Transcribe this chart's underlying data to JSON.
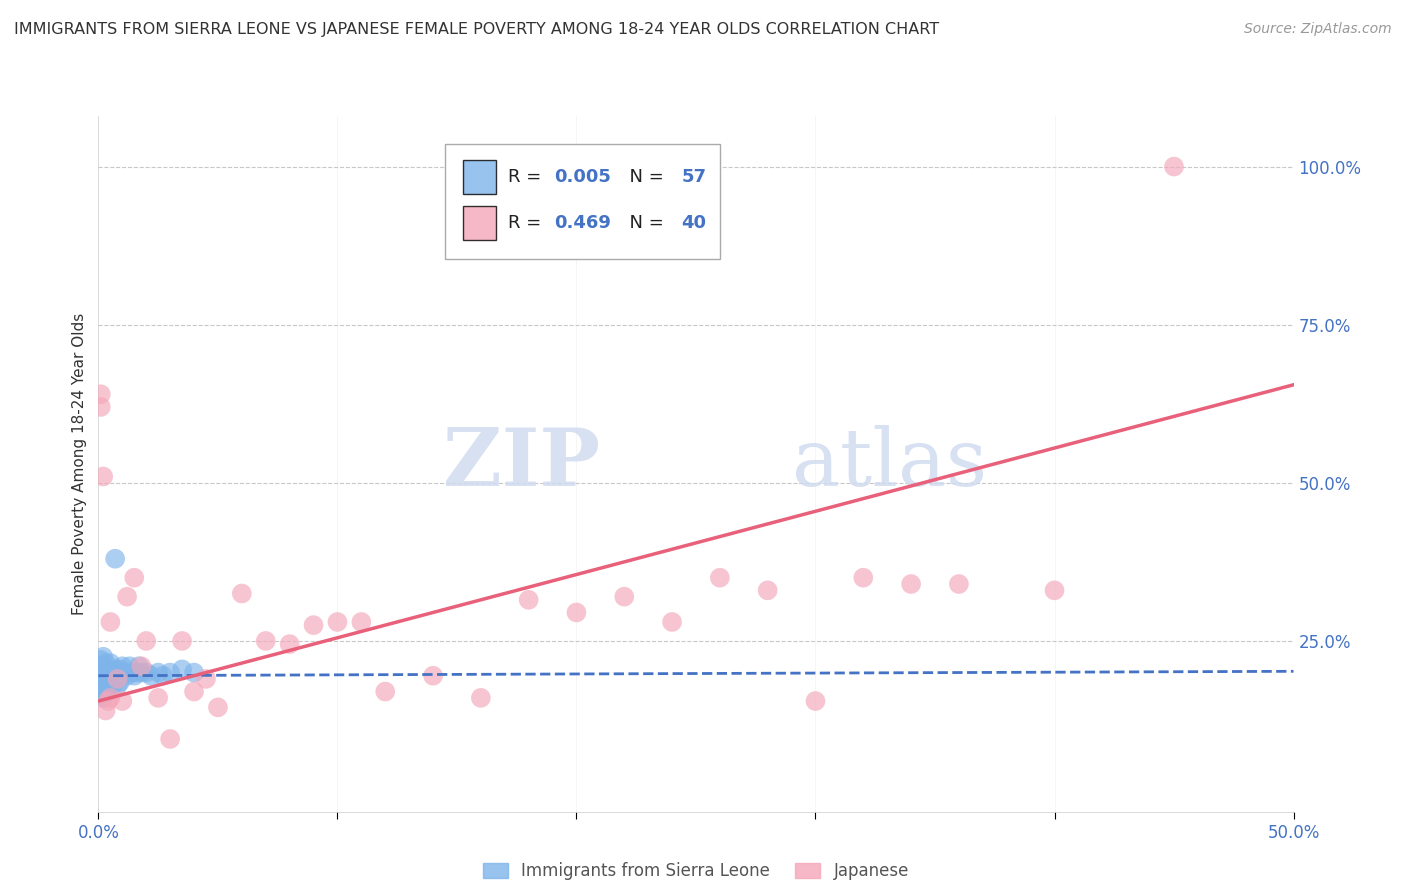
{
  "title": "IMMIGRANTS FROM SIERRA LEONE VS JAPANESE FEMALE POVERTY AMONG 18-24 YEAR OLDS CORRELATION CHART",
  "source": "Source: ZipAtlas.com",
  "ylabel": "Female Poverty Among 18-24 Year Olds",
  "xlim": [
    0.0,
    0.5
  ],
  "ylim": [
    -0.02,
    1.08
  ],
  "xticks": [
    0.0,
    0.1,
    0.2,
    0.3,
    0.4,
    0.5
  ],
  "xticklabels": [
    "0.0%",
    "",
    "",
    "",
    "",
    "50.0%"
  ],
  "yticks": [
    0.0,
    0.25,
    0.5,
    0.75,
    1.0
  ],
  "yticklabels_right": [
    "",
    "25.0%",
    "50.0%",
    "75.0%",
    "100.0%"
  ],
  "legend_r1": "0.005",
  "legend_n1": "57",
  "legend_r2": "0.469",
  "legend_n2": "40",
  "blue_color": "#7EB4EA",
  "pink_color": "#F4A7B9",
  "blue_line_color": "#4472C4",
  "pink_line_color": "#E8607A",
  "grid_color": "#C8C8C8",
  "watermark_zip": "ZIP",
  "watermark_atlas": "atlas",
  "blue_scatter_x": [
    0.0,
    0.0,
    0.0,
    0.001,
    0.001,
    0.001,
    0.001,
    0.001,
    0.001,
    0.002,
    0.002,
    0.002,
    0.002,
    0.002,
    0.002,
    0.002,
    0.003,
    0.003,
    0.003,
    0.003,
    0.003,
    0.004,
    0.004,
    0.004,
    0.004,
    0.005,
    0.005,
    0.005,
    0.006,
    0.006,
    0.006,
    0.007,
    0.007,
    0.007,
    0.008,
    0.008,
    0.008,
    0.009,
    0.009,
    0.009,
    0.01,
    0.01,
    0.011,
    0.012,
    0.013,
    0.014,
    0.015,
    0.016,
    0.017,
    0.018,
    0.02,
    0.022,
    0.025,
    0.027,
    0.03,
    0.035,
    0.04
  ],
  "blue_scatter_y": [
    0.195,
    0.185,
    0.175,
    0.21,
    0.195,
    0.18,
    0.165,
    0.175,
    0.22,
    0.2,
    0.19,
    0.185,
    0.18,
    0.17,
    0.16,
    0.225,
    0.205,
    0.195,
    0.185,
    0.175,
    0.215,
    0.2,
    0.19,
    0.18,
    0.17,
    0.195,
    0.185,
    0.215,
    0.2,
    0.19,
    0.18,
    0.205,
    0.38,
    0.195,
    0.2,
    0.19,
    0.18,
    0.205,
    0.195,
    0.185,
    0.21,
    0.2,
    0.2,
    0.195,
    0.21,
    0.2,
    0.195,
    0.2,
    0.21,
    0.2,
    0.2,
    0.195,
    0.2,
    0.195,
    0.2,
    0.205,
    0.2
  ],
  "pink_scatter_x": [
    0.001,
    0.001,
    0.002,
    0.003,
    0.004,
    0.005,
    0.005,
    0.008,
    0.01,
    0.012,
    0.015,
    0.018,
    0.02,
    0.025,
    0.03,
    0.035,
    0.04,
    0.045,
    0.05,
    0.06,
    0.07,
    0.08,
    0.09,
    0.1,
    0.11,
    0.12,
    0.14,
    0.16,
    0.18,
    0.2,
    0.22,
    0.24,
    0.26,
    0.28,
    0.3,
    0.32,
    0.34,
    0.36,
    0.4,
    0.45
  ],
  "pink_scatter_y": [
    0.62,
    0.64,
    0.51,
    0.14,
    0.155,
    0.28,
    0.16,
    0.19,
    0.155,
    0.32,
    0.35,
    0.21,
    0.25,
    0.16,
    0.095,
    0.25,
    0.17,
    0.19,
    0.145,
    0.325,
    0.25,
    0.245,
    0.275,
    0.28,
    0.28,
    0.17,
    0.195,
    0.16,
    0.315,
    0.295,
    0.32,
    0.28,
    0.35,
    0.33,
    0.155,
    0.35,
    0.34,
    0.34,
    0.33,
    1.0
  ],
  "blue_trend_x": [
    0.0,
    0.5
  ],
  "blue_trend_y": [
    0.195,
    0.202
  ],
  "pink_trend_x": [
    0.0,
    0.5
  ],
  "pink_trend_y": [
    0.155,
    0.655
  ]
}
